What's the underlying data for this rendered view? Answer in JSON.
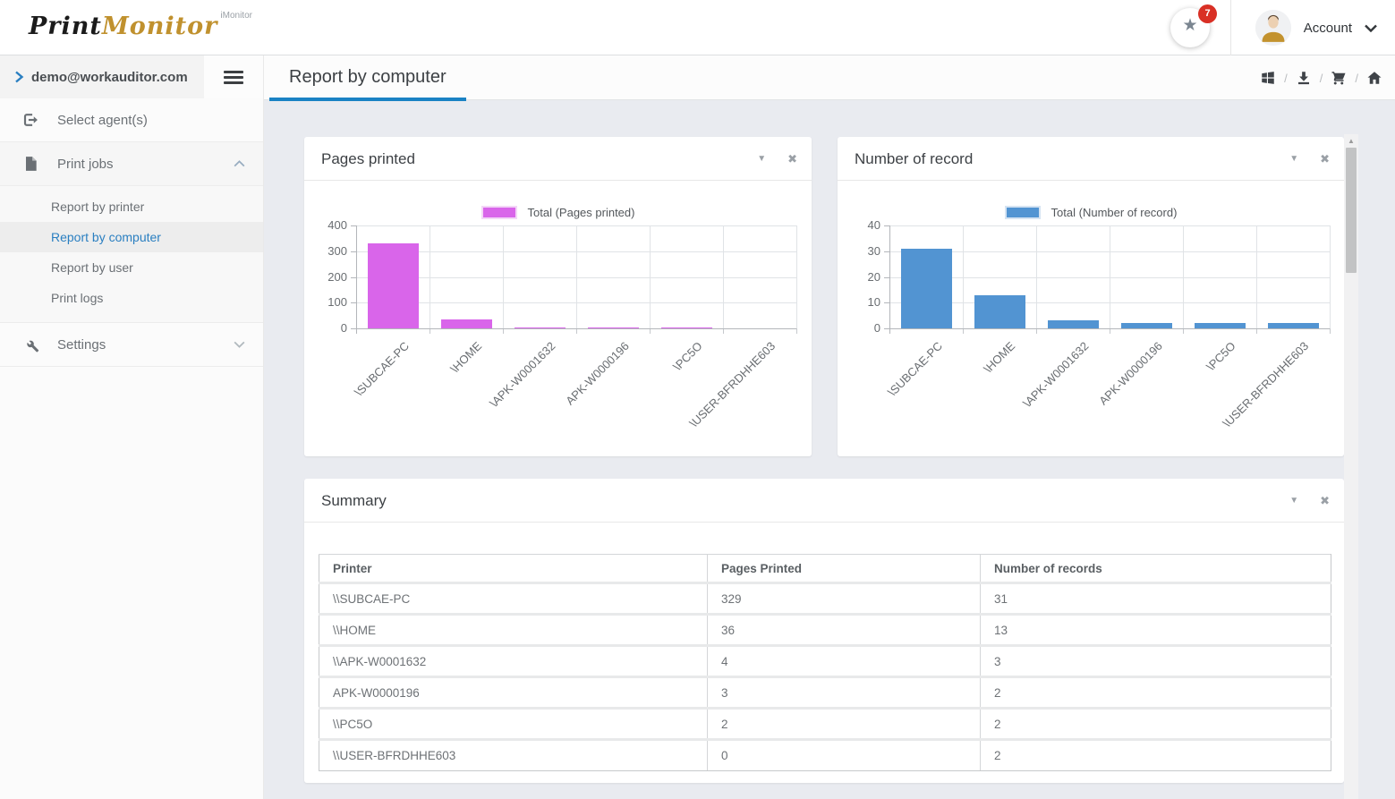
{
  "brand": {
    "name_primary": "Print",
    "name_secondary": "Monitor",
    "superscript": "iMonitor"
  },
  "top_bar": {
    "notification": {
      "icon": "star-icon",
      "badge_count": "7",
      "badge_color": "#d93025"
    },
    "account": {
      "label": "Account",
      "avatar_icon": "user-avatar",
      "chevron_icon": "chevron-down-icon"
    }
  },
  "sidebar": {
    "user_email": "demo@workauditor.com",
    "user_chevron_icon": "chevron-right-icon",
    "collapse_icon": "hamburger-icon",
    "items": [
      {
        "label": "Select agent(s)",
        "icon": "agent-select-icon"
      },
      {
        "label": "Print jobs",
        "icon": "document-icon",
        "state": "expanded",
        "chevron_icon": "chevron-up-icon"
      },
      {
        "label": "Settings",
        "icon": "wrench-icon",
        "state": "collapsed",
        "chevron_icon": "chevron-down-icon"
      }
    ],
    "print_jobs_children": [
      {
        "label": "Report by printer",
        "active": false
      },
      {
        "label": "Report by computer",
        "active": true
      },
      {
        "label": "Report by user",
        "active": false
      },
      {
        "label": "Print logs",
        "active": false
      }
    ],
    "active_color": "#2a7fc1"
  },
  "content_header": {
    "tab_title": "Report by computer",
    "tab_underline_color": "#1a82c4",
    "toolbar_icons": [
      "windows-grid-icon",
      "download-icon",
      "cart-icon",
      "home-icon"
    ],
    "separator": "/"
  },
  "panels": {
    "pages_printed_title": "Pages printed",
    "number_of_record_title": "Number of record",
    "summary_title": "Summary",
    "collapse_icon": "chevron-collapse-icon",
    "close_icon": "close-icon",
    "collapse_glyph": "▼",
    "close_glyph": "✖"
  },
  "chart_data": [
    {
      "type": "bar",
      "title": "Pages printed",
      "legend": "Total (Pages printed)",
      "legend_position": "top",
      "bar_color": "#d965ea",
      "legend_border": "#f3d6f7",
      "categories": [
        "\\SUBCAE-PC",
        "\\HOME",
        "\\APK-W0001632",
        "APK-W0000196",
        "\\PC5O",
        "\\USER-BFRDHHE603"
      ],
      "values": [
        329,
        36,
        4,
        3,
        2,
        0
      ],
      "yticks": [
        0,
        100,
        200,
        300,
        400
      ],
      "ylim": [
        0,
        400
      ],
      "grid": true
    },
    {
      "type": "bar",
      "title": "Number of record",
      "legend": "Total (Number of record)",
      "legend_position": "top",
      "bar_color": "#5294d2",
      "legend_border": "#d5e3f2",
      "categories": [
        "\\SUBCAE-PC",
        "\\HOME",
        "\\APK-W0001632",
        "APK-W0000196",
        "\\PC5O",
        "\\USER-BFRDHHE603"
      ],
      "values": [
        31,
        13,
        3,
        2,
        2,
        2
      ],
      "yticks": [
        0,
        10,
        20,
        30,
        40
      ],
      "ylim": [
        0,
        40
      ],
      "grid": true
    }
  ],
  "summary": {
    "title": "Summary",
    "columns": [
      "Printer",
      "Pages Printed",
      "Number of records"
    ],
    "rows": [
      [
        "\\\\SUBCAE-PC",
        "329",
        "31"
      ],
      [
        "\\\\HOME",
        "36",
        "13"
      ],
      [
        "\\\\APK-W0001632",
        "4",
        "3"
      ],
      [
        "APK-W0000196",
        "3",
        "2"
      ],
      [
        "\\\\PC5O",
        "2",
        "2"
      ],
      [
        "\\\\USER-BFRDHHE603",
        "0",
        "2"
      ]
    ]
  },
  "scrollbar": {
    "up_glyph": "▲"
  }
}
